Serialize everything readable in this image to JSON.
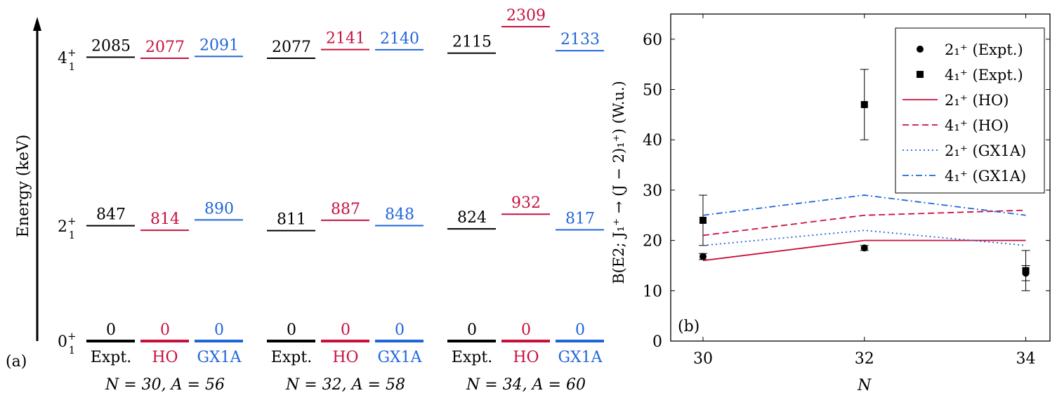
{
  "colors": {
    "expt": "#000000",
    "ho": "#c8103e",
    "gx1a": "#1f66d9"
  },
  "chart_data": [
    {
      "type": "level-scheme",
      "panel_label": "(a)",
      "ylabel": "Energy (keV)",
      "state_labels": [
        {
          "j": "0",
          "sub": "1",
          "sup": "+"
        },
        {
          "j": "2",
          "sub": "1",
          "sup": "+"
        },
        {
          "j": "4",
          "sub": "1",
          "sup": "+"
        }
      ],
      "column_labels": [
        "Expt.",
        "HO",
        "GX1A"
      ],
      "groups": [
        {
          "label": "N = 30, A = 56",
          "levels": {
            "expt": [
              0,
              847,
              2085
            ],
            "ho": [
              0,
              814,
              2077
            ],
            "gx1a": [
              0,
              890,
              2091
            ]
          }
        },
        {
          "label": "N = 32, A = 58",
          "levels": {
            "expt": [
              0,
              811,
              2077
            ],
            "ho": [
              0,
              887,
              2141
            ],
            "gx1a": [
              0,
              848,
              2140
            ]
          }
        },
        {
          "label": "N = 34, A = 60",
          "levels": {
            "expt": [
              0,
              824,
              2115
            ],
            "ho": [
              0,
              932,
              2309
            ],
            "gx1a": [
              0,
              817,
              2133
            ]
          }
        }
      ]
    },
    {
      "type": "line",
      "panel_label": "(b)",
      "xlabel": "N",
      "ylabel": "B(E2; J₁⁺ → (J − 2)₁⁺) (W.u.)",
      "x": [
        30,
        32,
        34
      ],
      "xticks": [
        "30",
        "32",
        "34"
      ],
      "yticks": [
        "0",
        "10",
        "20",
        "30",
        "40",
        "50",
        "60"
      ],
      "xlim": [
        29.6,
        34.3
      ],
      "ylim": [
        0,
        65
      ],
      "legend_position": "top-right",
      "series": [
        {
          "name": "2₁⁺ (Expt.)",
          "style": "circle",
          "color": "#000000",
          "values": [
            16.8,
            18.5,
            13.5
          ],
          "errors": [
            0.6,
            0.5,
            1.5
          ]
        },
        {
          "name": "4₁⁺ (Expt.)",
          "style": "square",
          "color": "#000000",
          "values": [
            24,
            47,
            14
          ],
          "errors": [
            5,
            7,
            4
          ]
        },
        {
          "name": "2₁⁺ (HO)",
          "style": "solid",
          "color": "#c8103e",
          "values": [
            16,
            20,
            20
          ]
        },
        {
          "name": "4₁⁺ (HO)",
          "style": "dashed",
          "color": "#c8103e",
          "values": [
            21,
            25,
            26
          ]
        },
        {
          "name": "2₁⁺ (GX1A)",
          "style": "dotted",
          "color": "#1f66d9",
          "values": [
            19,
            22,
            19
          ]
        },
        {
          "name": "4₁⁺ (GX1A)",
          "style": "dashdot",
          "color": "#1f66d9",
          "values": [
            25,
            29,
            25
          ]
        }
      ]
    }
  ]
}
